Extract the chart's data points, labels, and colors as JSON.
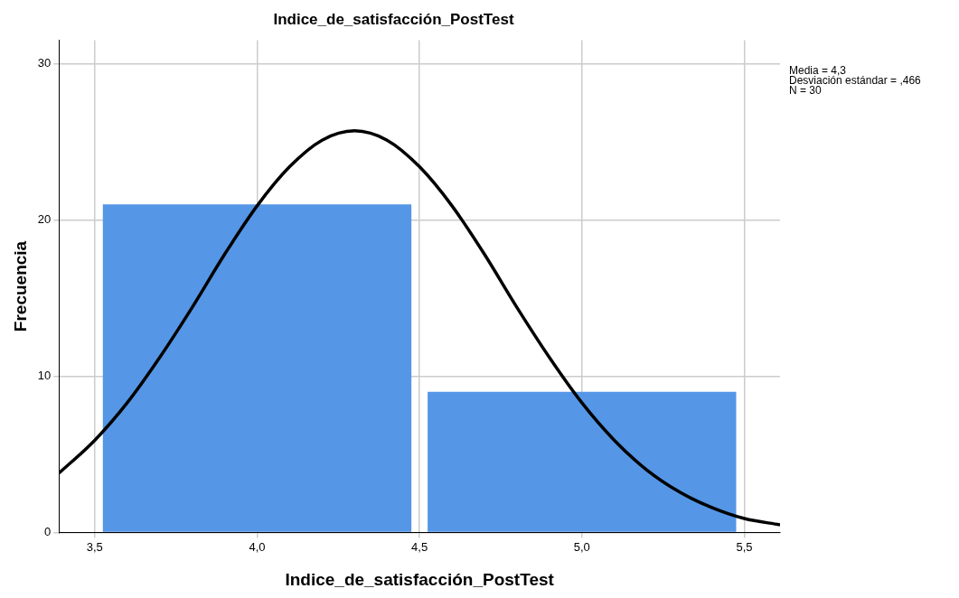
{
  "chart_data": {
    "type": "histogram",
    "title": "Indice_de_satisfacción_PostTest",
    "xlabel": "Indice_de_satisfacción_PostTest",
    "ylabel": "Frecuencia",
    "bins": [
      3.5,
      4.5,
      5.5
    ],
    "values": [
      21,
      9
    ],
    "color": "#5596e6",
    "series": [
      {
        "type": "line",
        "color": "#000000",
        "x": [
          3.39,
          3.5,
          3.6,
          3.7,
          3.8,
          3.9,
          4.0,
          4.1,
          4.2,
          4.3,
          4.4,
          4.5,
          4.6,
          4.7,
          4.8,
          4.9,
          5.0,
          5.1,
          5.2,
          5.3,
          5.4,
          5.5,
          5.61
        ],
        "values": [
          3.8,
          5.9,
          8.3,
          11.2,
          14.4,
          17.8,
          20.9,
          23.4,
          25.1,
          25.7,
          25.1,
          23.4,
          20.9,
          17.8,
          14.4,
          11.2,
          8.3,
          5.9,
          4.0,
          2.6,
          1.6,
          0.9,
          0.5
        ]
      }
    ],
    "xlim": [
      3.39,
      5.61
    ],
    "xticks": [
      {
        "value": 3.5,
        "label": "3,5"
      },
      {
        "value": 4.0,
        "label": "4,0"
      },
      {
        "value": 4.5,
        "label": "4,5"
      },
      {
        "value": 5.0,
        "label": "5,0"
      },
      {
        "value": 5.5,
        "label": "5,5"
      }
    ],
    "ylim": [
      0,
      31.5
    ],
    "yticks": [
      0,
      10,
      20,
      30
    ],
    "grid": true,
    "legend": false,
    "marker": "none",
    "line_style": "solid",
    "annotations": [
      "Media = 4,3",
      "Desviación estándar = ,466",
      "N = 30"
    ]
  }
}
